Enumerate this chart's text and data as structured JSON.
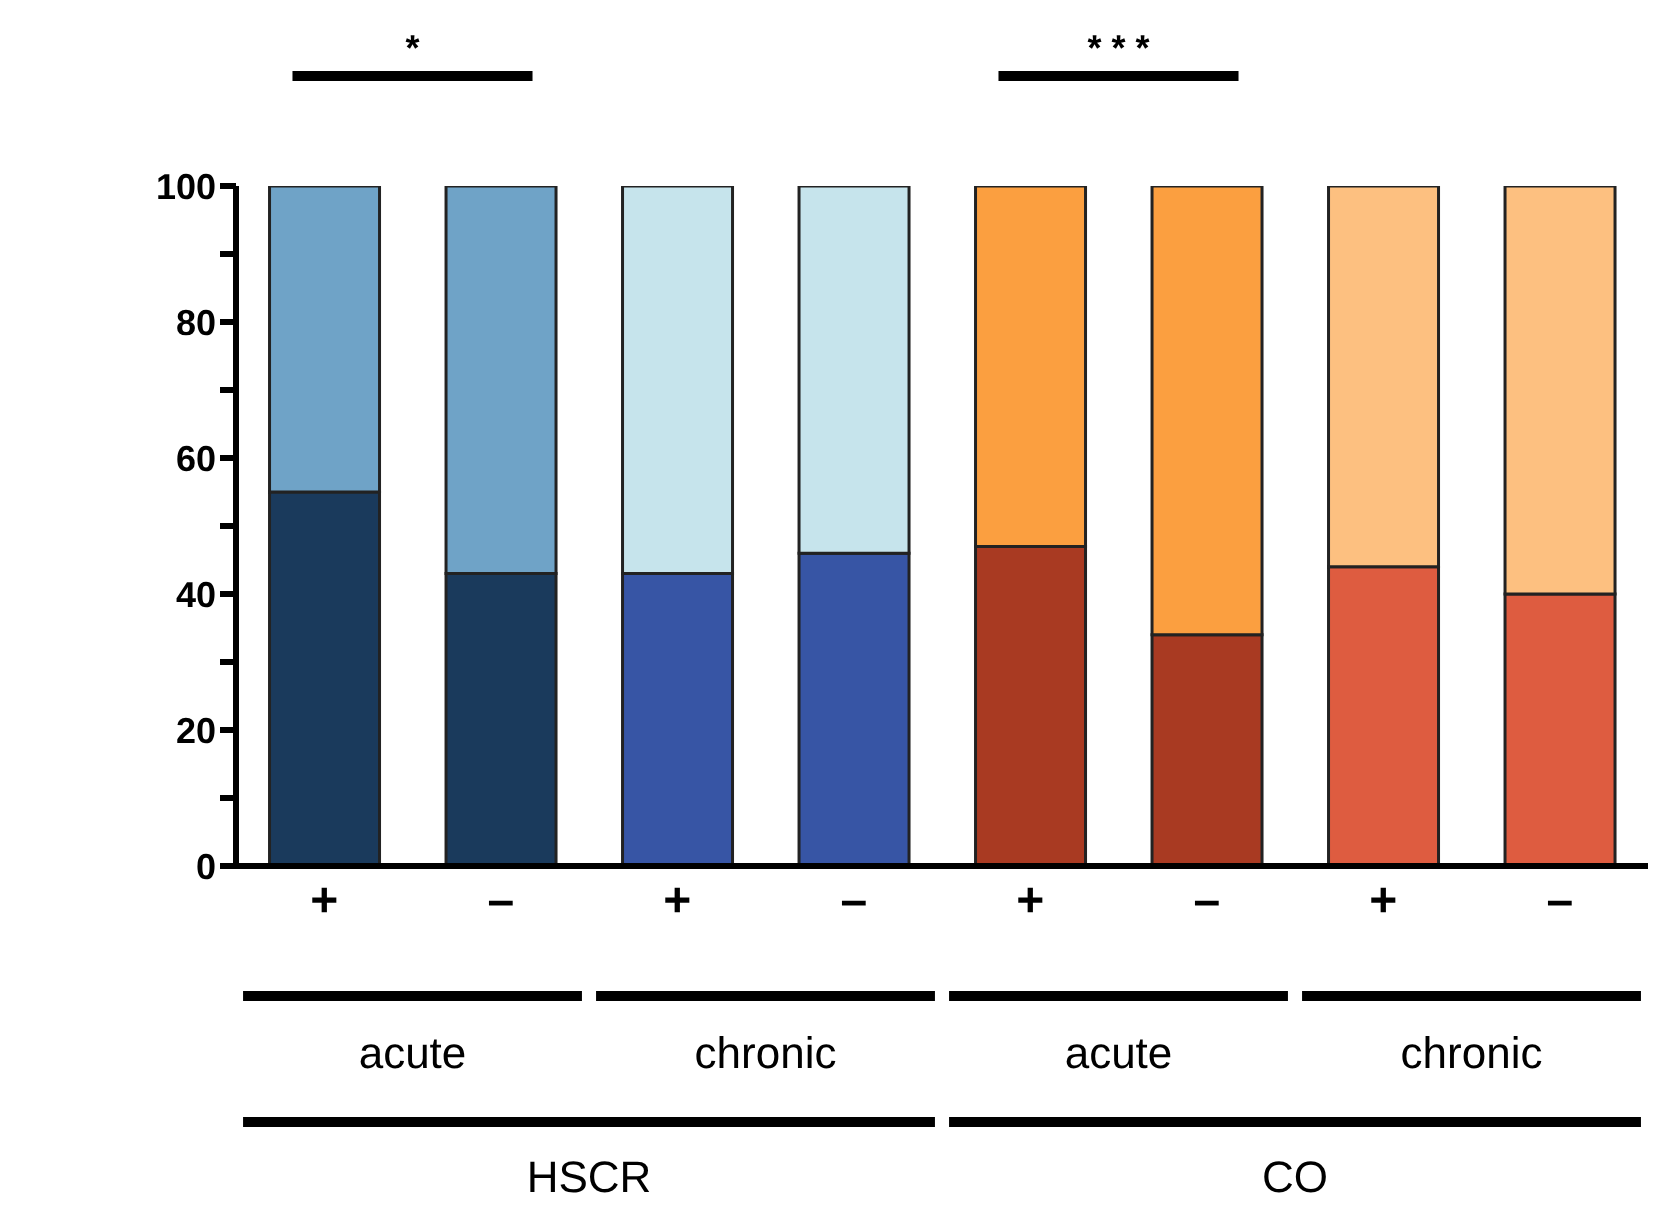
{
  "chart_data": {
    "type": "bar",
    "stacked": true,
    "categories": [
      "+",
      "–",
      "+",
      "–",
      "+",
      "–",
      "+",
      "–"
    ],
    "series": [
      {
        "colors": [
          "#1a3a5c",
          "#1a3a5c",
          "#3755a5",
          "#3755a5",
          "#a93a22",
          "#a93a22",
          "#de5c40",
          "#de5c40"
        ],
        "values": [
          55,
          43,
          43,
          46,
          47,
          34,
          44,
          40
        ]
      },
      {
        "colors": [
          "#6fa3c7",
          "#6fa3c7",
          "#c6e4ec",
          "#c6e4ec",
          "#fb9f40",
          "#fb9f40",
          "#fdc080",
          "#fdc080"
        ],
        "values": [
          45,
          57,
          57,
          54,
          53,
          66,
          56,
          60
        ]
      }
    ],
    "ylim": [
      0,
      100
    ],
    "yticks": [
      0,
      {
        "value": 10,
        "label": null
      },
      20,
      {
        "value": 30,
        "label": null
      },
      40,
      {
        "value": 50,
        "label": null
      },
      60,
      {
        "value": 70,
        "label": null
      },
      80,
      {
        "value": 90,
        "label": null
      },
      100
    ],
    "annotations": [
      "*",
      "* * *",
      "acute",
      "chronic",
      "acute",
      "chronic",
      "HSCR",
      "CO"
    ],
    "grid": false,
    "legend": false
  }
}
